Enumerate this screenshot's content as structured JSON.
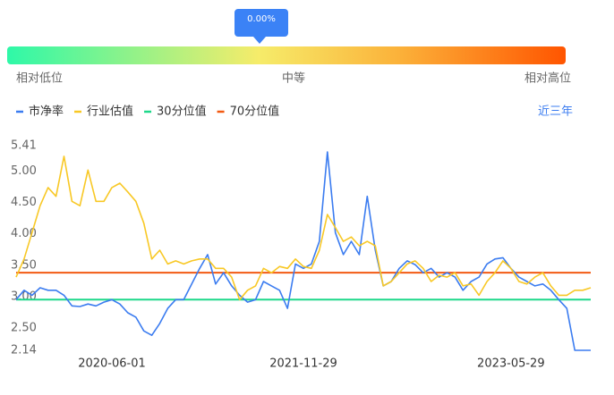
{
  "gauge": {
    "marker_label": "0.00%",
    "low_label": "相对低位",
    "mid_label": "中等",
    "high_label": "相对高位"
  },
  "range_button": "近三年",
  "chart_data": {
    "type": "line",
    "categories": [
      null,
      null,
      null,
      null,
      null,
      null,
      null,
      null,
      null,
      null,
      null,
      null,
      "2020-06-01",
      null,
      null,
      null,
      null,
      null,
      null,
      null,
      null,
      null,
      null,
      null,
      null,
      null,
      null,
      null,
      null,
      null,
      null,
      null,
      null,
      null,
      null,
      null,
      "2021-11-29",
      null,
      null,
      null,
      null,
      null,
      null,
      null,
      null,
      null,
      null,
      null,
      null,
      null,
      null,
      null,
      null,
      null,
      null,
      null,
      null,
      null,
      null,
      null,
      null,
      null,
      "2023-05-29",
      null,
      null,
      null,
      null,
      null,
      null,
      null,
      null,
      null,
      null
    ],
    "series": [
      {
        "name": "市净率",
        "color": "#3b7cf0",
        "values": [
          2.95,
          3.1,
          3.02,
          3.14,
          3.1,
          3.1,
          3.02,
          2.85,
          2.84,
          2.88,
          2.85,
          2.91,
          2.95,
          2.88,
          2.74,
          2.67,
          2.45,
          2.38,
          2.57,
          2.81,
          2.95,
          2.95,
          3.2,
          3.45,
          3.67,
          3.2,
          3.38,
          3.17,
          3.02,
          2.91,
          2.95,
          3.24,
          3.17,
          3.1,
          2.81,
          3.52,
          3.45,
          3.52,
          3.88,
          5.31,
          4.02,
          3.67,
          3.88,
          3.67,
          4.6,
          3.74,
          3.17,
          3.24,
          3.45,
          3.57,
          3.51,
          3.38,
          3.45,
          3.31,
          3.38,
          3.31,
          3.1,
          3.24,
          3.31,
          3.52,
          3.6,
          3.62,
          3.45,
          3.31,
          3.24,
          3.17,
          3.2,
          3.1,
          2.95,
          2.81,
          2.14,
          2.14,
          2.14
        ]
      },
      {
        "name": "行业估值",
        "color": "#f8c825",
        "values": [
          3.31,
          3.6,
          4.02,
          4.45,
          4.74,
          4.6,
          5.24,
          4.52,
          4.45,
          5.02,
          4.52,
          4.52,
          4.74,
          4.81,
          4.67,
          4.52,
          4.17,
          3.6,
          3.74,
          3.52,
          3.57,
          3.52,
          3.57,
          3.6,
          3.6,
          3.45,
          3.45,
          3.31,
          2.95,
          3.1,
          3.17,
          3.45,
          3.38,
          3.48,
          3.45,
          3.6,
          3.48,
          3.45,
          3.74,
          4.31,
          4.1,
          3.88,
          3.95,
          3.81,
          3.88,
          3.81,
          3.17,
          3.24,
          3.38,
          3.52,
          3.57,
          3.45,
          3.24,
          3.34,
          3.31,
          3.38,
          3.17,
          3.2,
          3.02,
          3.24,
          3.38,
          3.57,
          3.45,
          3.24,
          3.2,
          3.31,
          3.38,
          3.17,
          3.02,
          3.02,
          3.1,
          3.1,
          3.14
        ]
      },
      {
        "name": "30分位值",
        "color": "#1ed88a",
        "value": 2.95
      },
      {
        "name": "70分位值",
        "color": "#f25a12",
        "value": 3.38
      }
    ],
    "ylim": [
      2.14,
      5.41
    ],
    "yticks": [
      2.14,
      {
        "value": 2.5,
        "label": "2.50"
      },
      {
        "value": 3,
        "label": "3.00"
      },
      {
        "value": 3.5,
        "label": "3.50"
      },
      {
        "value": 4,
        "label": "4.00"
      },
      {
        "value": 4.5,
        "label": "4.50"
      },
      {
        "value": 5,
        "label": "5.00"
      },
      5.41
    ],
    "grid": false
  }
}
